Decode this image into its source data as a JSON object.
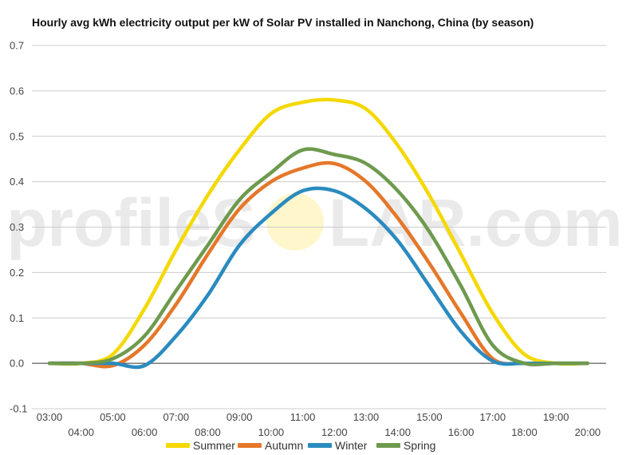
{
  "chart_data": {
    "type": "line",
    "title": "Hourly avg kWh electricity output per kW of Solar PV installed in Nanchong, China (by season)",
    "xlabel": "",
    "ylabel": "",
    "x": [
      "03:00",
      "04:00",
      "05:00",
      "06:00",
      "07:00",
      "08:00",
      "09:00",
      "10:00",
      "11:00",
      "12:00",
      "13:00",
      "14:00",
      "15:00",
      "16:00",
      "17:00",
      "18:00",
      "19:00",
      "20:00"
    ],
    "ylim": [
      -0.1,
      0.7
    ],
    "yticks": [
      -0.1,
      0.0,
      0.1,
      0.2,
      0.3,
      0.4,
      0.5,
      0.6,
      0.7
    ],
    "grid": true,
    "legend_position": "bottom",
    "series": [
      {
        "name": "Summer",
        "color": "#f5d800",
        "values": [
          0.0,
          0.0,
          0.02,
          0.12,
          0.25,
          0.37,
          0.47,
          0.55,
          0.575,
          0.58,
          0.56,
          0.48,
          0.37,
          0.24,
          0.11,
          0.02,
          0.0,
          0.0
        ]
      },
      {
        "name": "Autumn",
        "color": "#e5772a",
        "values": [
          0.0,
          0.0,
          -0.005,
          0.04,
          0.13,
          0.24,
          0.34,
          0.4,
          0.43,
          0.44,
          0.4,
          0.32,
          0.22,
          0.11,
          0.01,
          0.0,
          0.0,
          0.0
        ]
      },
      {
        "name": "Winter",
        "color": "#2a8bbf",
        "values": [
          0.0,
          0.0,
          0.0,
          -0.005,
          0.06,
          0.15,
          0.26,
          0.33,
          0.38,
          0.38,
          0.34,
          0.27,
          0.17,
          0.07,
          0.005,
          0.0,
          0.0,
          0.0
        ]
      },
      {
        "name": "Spring",
        "color": "#6e9a4e",
        "values": [
          0.0,
          0.0,
          0.01,
          0.06,
          0.16,
          0.26,
          0.36,
          0.42,
          0.47,
          0.46,
          0.44,
          0.38,
          0.29,
          0.17,
          0.04,
          0.0,
          0.0,
          0.0
        ]
      }
    ]
  },
  "watermark": {
    "text_left": "profileS",
    "text_right": "LAR.com"
  }
}
